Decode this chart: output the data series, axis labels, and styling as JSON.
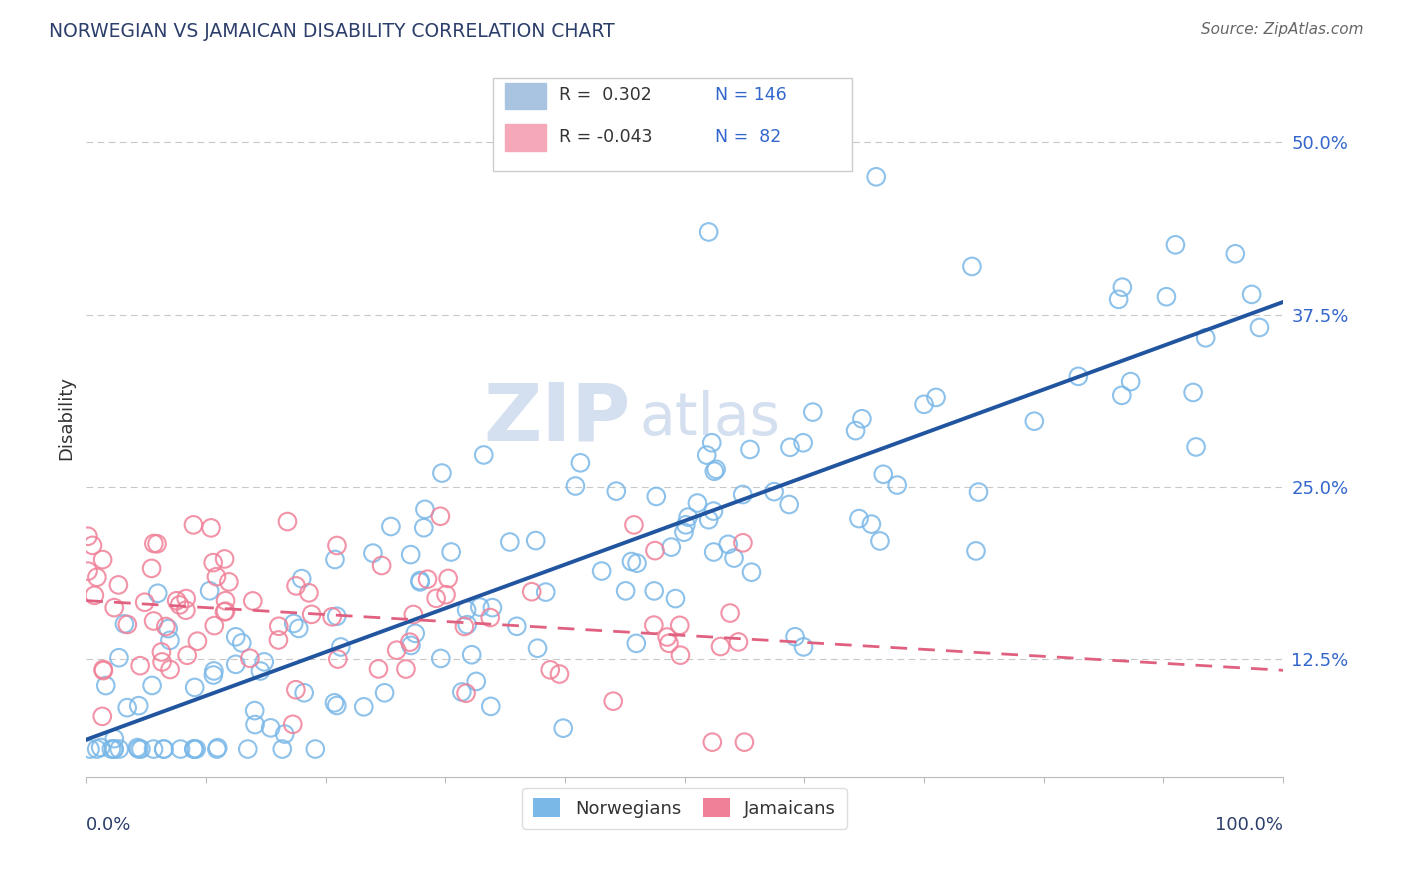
{
  "title": "NORWEGIAN VS JAMAICAN DISABILITY CORRELATION CHART",
  "source": "Source: ZipAtlas.com",
  "ylabel": "Disability",
  "ytick_labels": [
    "50.0%",
    "37.5%",
    "25.0%",
    "12.5%"
  ],
  "ytick_values": [
    0.5,
    0.375,
    0.25,
    0.125
  ],
  "xlim": [
    0.0,
    1.0
  ],
  "ylim": [
    0.04,
    0.56
  ],
  "legend_entries": [
    {
      "r_text": "R =  0.302",
      "n_text": "N = 146",
      "color": "#a8c4e0"
    },
    {
      "r_text": "R = -0.043",
      "n_text": "N =  82",
      "color": "#f4a8b8"
    }
  ],
  "norwegian_color": "#7ab8e8",
  "jamaican_color": "#f08098",
  "norwegian_line_color": "#2255a0",
  "jamaican_line_color": "#e06080",
  "background_color": "#ffffff",
  "grid_color": "#c8c8c8",
  "title_color": "#2c3e6b",
  "ylabel_color": "#333333",
  "ytick_color": "#3366cc",
  "watermark_zip": "ZIP",
  "watermark_atlas": "atlas",
  "watermark_color": "#d4dff0",
  "r_norwegian": 0.302,
  "n_norwegian": 146,
  "r_jamaican": -0.043,
  "n_jamaican": 82,
  "seed": 42
}
